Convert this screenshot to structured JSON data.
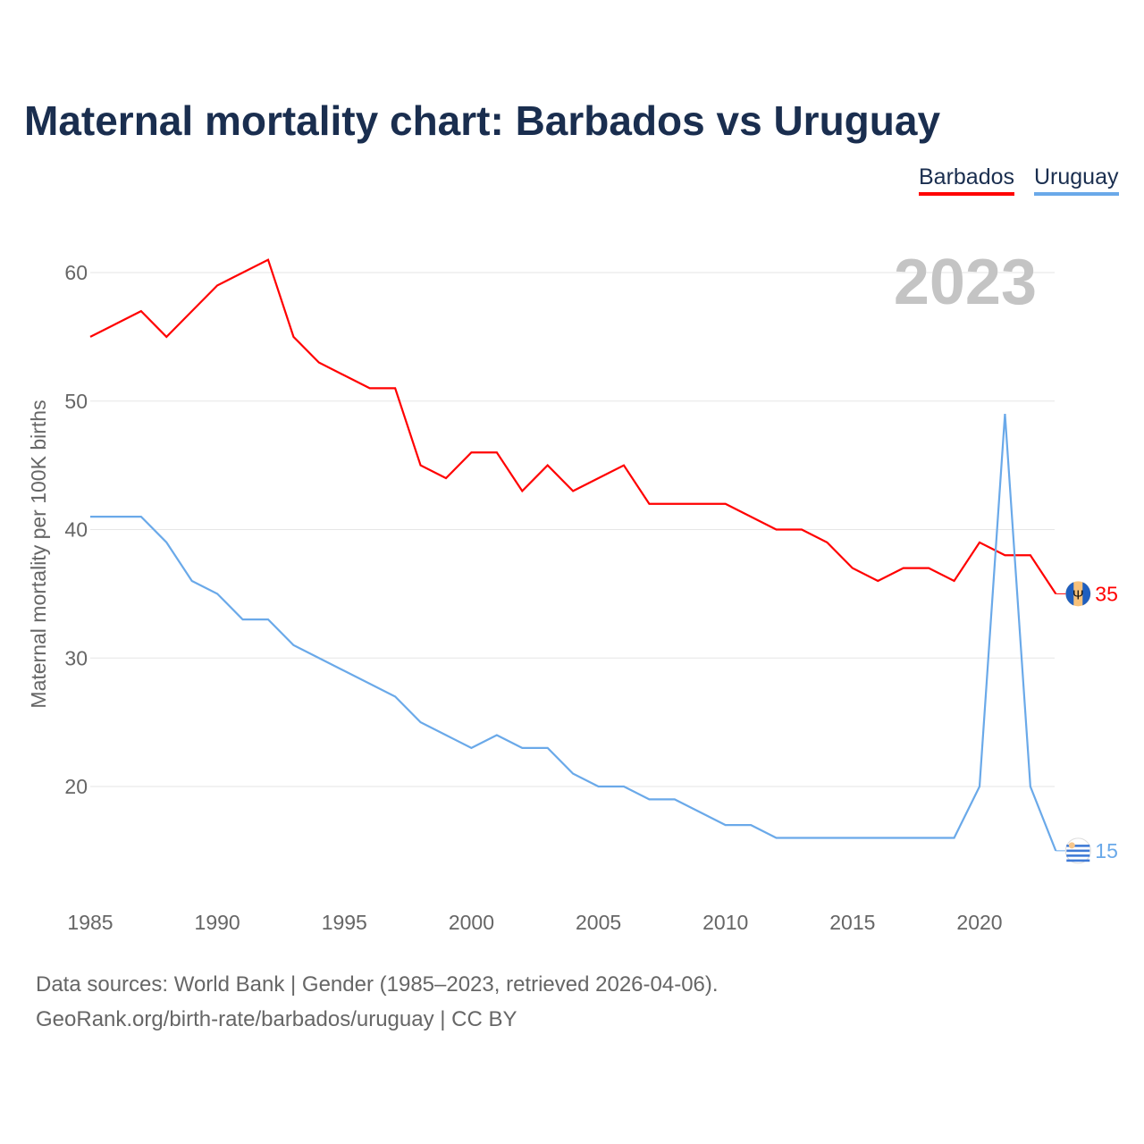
{
  "title": "Maternal mortality chart: Barbados vs Uruguay",
  "source_line1": "Data sources: World Bank | Gender (1985–2023, retrieved 2026-04-06).",
  "source_line2": "GeoRank.org/birth-rate/barbados/uruguay | CC BY",
  "chart_data": {
    "type": "line",
    "title": "Maternal mortality chart: Barbados vs Uruguay",
    "year_label": "2023",
    "ylabel": "Maternal mortality per 100K births",
    "xlabel": "",
    "xlim": [
      1985,
      2023
    ],
    "ylim": [
      11,
      64
    ],
    "x_ticks": [
      1985,
      1990,
      1995,
      2000,
      2005,
      2010,
      2015,
      2020
    ],
    "y_ticks": [
      20,
      30,
      40,
      50,
      60
    ],
    "grid": true,
    "legend_position": "top-right",
    "x": [
      1985,
      1986,
      1987,
      1988,
      1989,
      1990,
      1991,
      1992,
      1993,
      1994,
      1995,
      1996,
      1997,
      1998,
      1999,
      2000,
      2001,
      2002,
      2003,
      2004,
      2005,
      2006,
      2007,
      2008,
      2009,
      2010,
      2011,
      2012,
      2013,
      2014,
      2015,
      2016,
      2017,
      2018,
      2019,
      2020,
      2021,
      2022,
      2023
    ],
    "series": [
      {
        "name": "Barbados",
        "color": "#ff0000",
        "end_label": "35",
        "values": [
          55,
          56,
          57,
          55,
          57,
          59,
          60,
          61,
          55,
          53,
          52,
          51,
          51,
          45,
          44,
          46,
          46,
          43,
          45,
          43,
          44,
          45,
          42,
          42,
          42,
          42,
          41,
          40,
          40,
          39,
          37,
          36,
          37,
          37,
          36,
          39,
          38,
          38,
          35
        ]
      },
      {
        "name": "Uruguay",
        "color": "#6aa9e9",
        "end_label": "15",
        "values": [
          41,
          41,
          41,
          39,
          36,
          35,
          33,
          33,
          31,
          30,
          29,
          28,
          27,
          25,
          24,
          23,
          24,
          23,
          23,
          21,
          20,
          20,
          19,
          19,
          18,
          17,
          17,
          16,
          16,
          16,
          16,
          16,
          16,
          16,
          16,
          20,
          49,
          20,
          15
        ]
      }
    ]
  }
}
